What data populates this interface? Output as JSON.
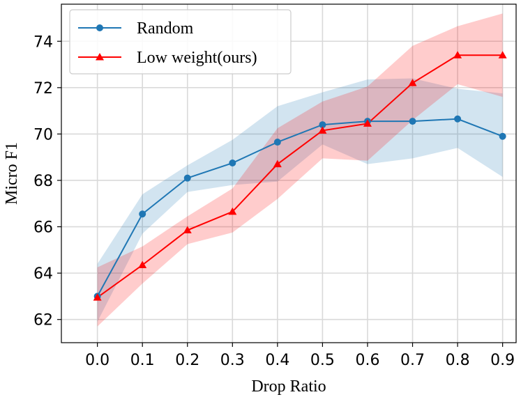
{
  "chart_data": {
    "type": "line",
    "xlabel": "Drop Ratio",
    "ylabel": "Micro F1",
    "x": [
      0.0,
      0.1,
      0.2,
      0.3,
      0.4,
      0.5,
      0.6,
      0.7,
      0.8,
      0.9
    ],
    "x_tick_labels": [
      "0.0",
      "0.1",
      "0.2",
      "0.3",
      "0.4",
      "0.5",
      "0.6",
      "0.7",
      "0.8",
      "0.9"
    ],
    "xlim": [
      -0.08,
      0.93
    ],
    "ylim": [
      61.0,
      75.6
    ],
    "y_ticks": [
      62,
      64,
      66,
      68,
      70,
      72,
      74
    ],
    "y_tick_labels": [
      "62",
      "64",
      "66",
      "68",
      "70",
      "72",
      "74"
    ],
    "grid": true,
    "legend_position": "top-left",
    "series": [
      {
        "name": "Random",
        "color": "#1f77b4",
        "marker": "circle",
        "values": [
          63.0,
          66.55,
          68.1,
          68.75,
          69.65,
          70.4,
          70.55,
          70.55,
          70.65,
          69.9
        ],
        "band_lower": [
          61.9,
          65.7,
          67.5,
          67.8,
          67.95,
          69.55,
          68.7,
          68.95,
          69.4,
          68.15
        ],
        "band_upper": [
          64.4,
          67.4,
          68.65,
          69.75,
          71.2,
          71.8,
          72.35,
          72.4,
          71.95,
          71.75
        ]
      },
      {
        "name": "Low weight(ours)",
        "color": "#ff0000",
        "marker": "triangle",
        "values": [
          62.95,
          64.35,
          65.85,
          66.65,
          68.7,
          70.15,
          70.45,
          72.2,
          73.4,
          73.4
        ],
        "band_lower": [
          61.7,
          63.55,
          65.25,
          65.75,
          67.2,
          68.95,
          68.85,
          70.6,
          72.15,
          71.6
        ],
        "band_upper": [
          64.25,
          65.15,
          66.45,
          67.65,
          70.25,
          71.4,
          72.05,
          73.8,
          74.65,
          75.2
        ]
      }
    ]
  }
}
